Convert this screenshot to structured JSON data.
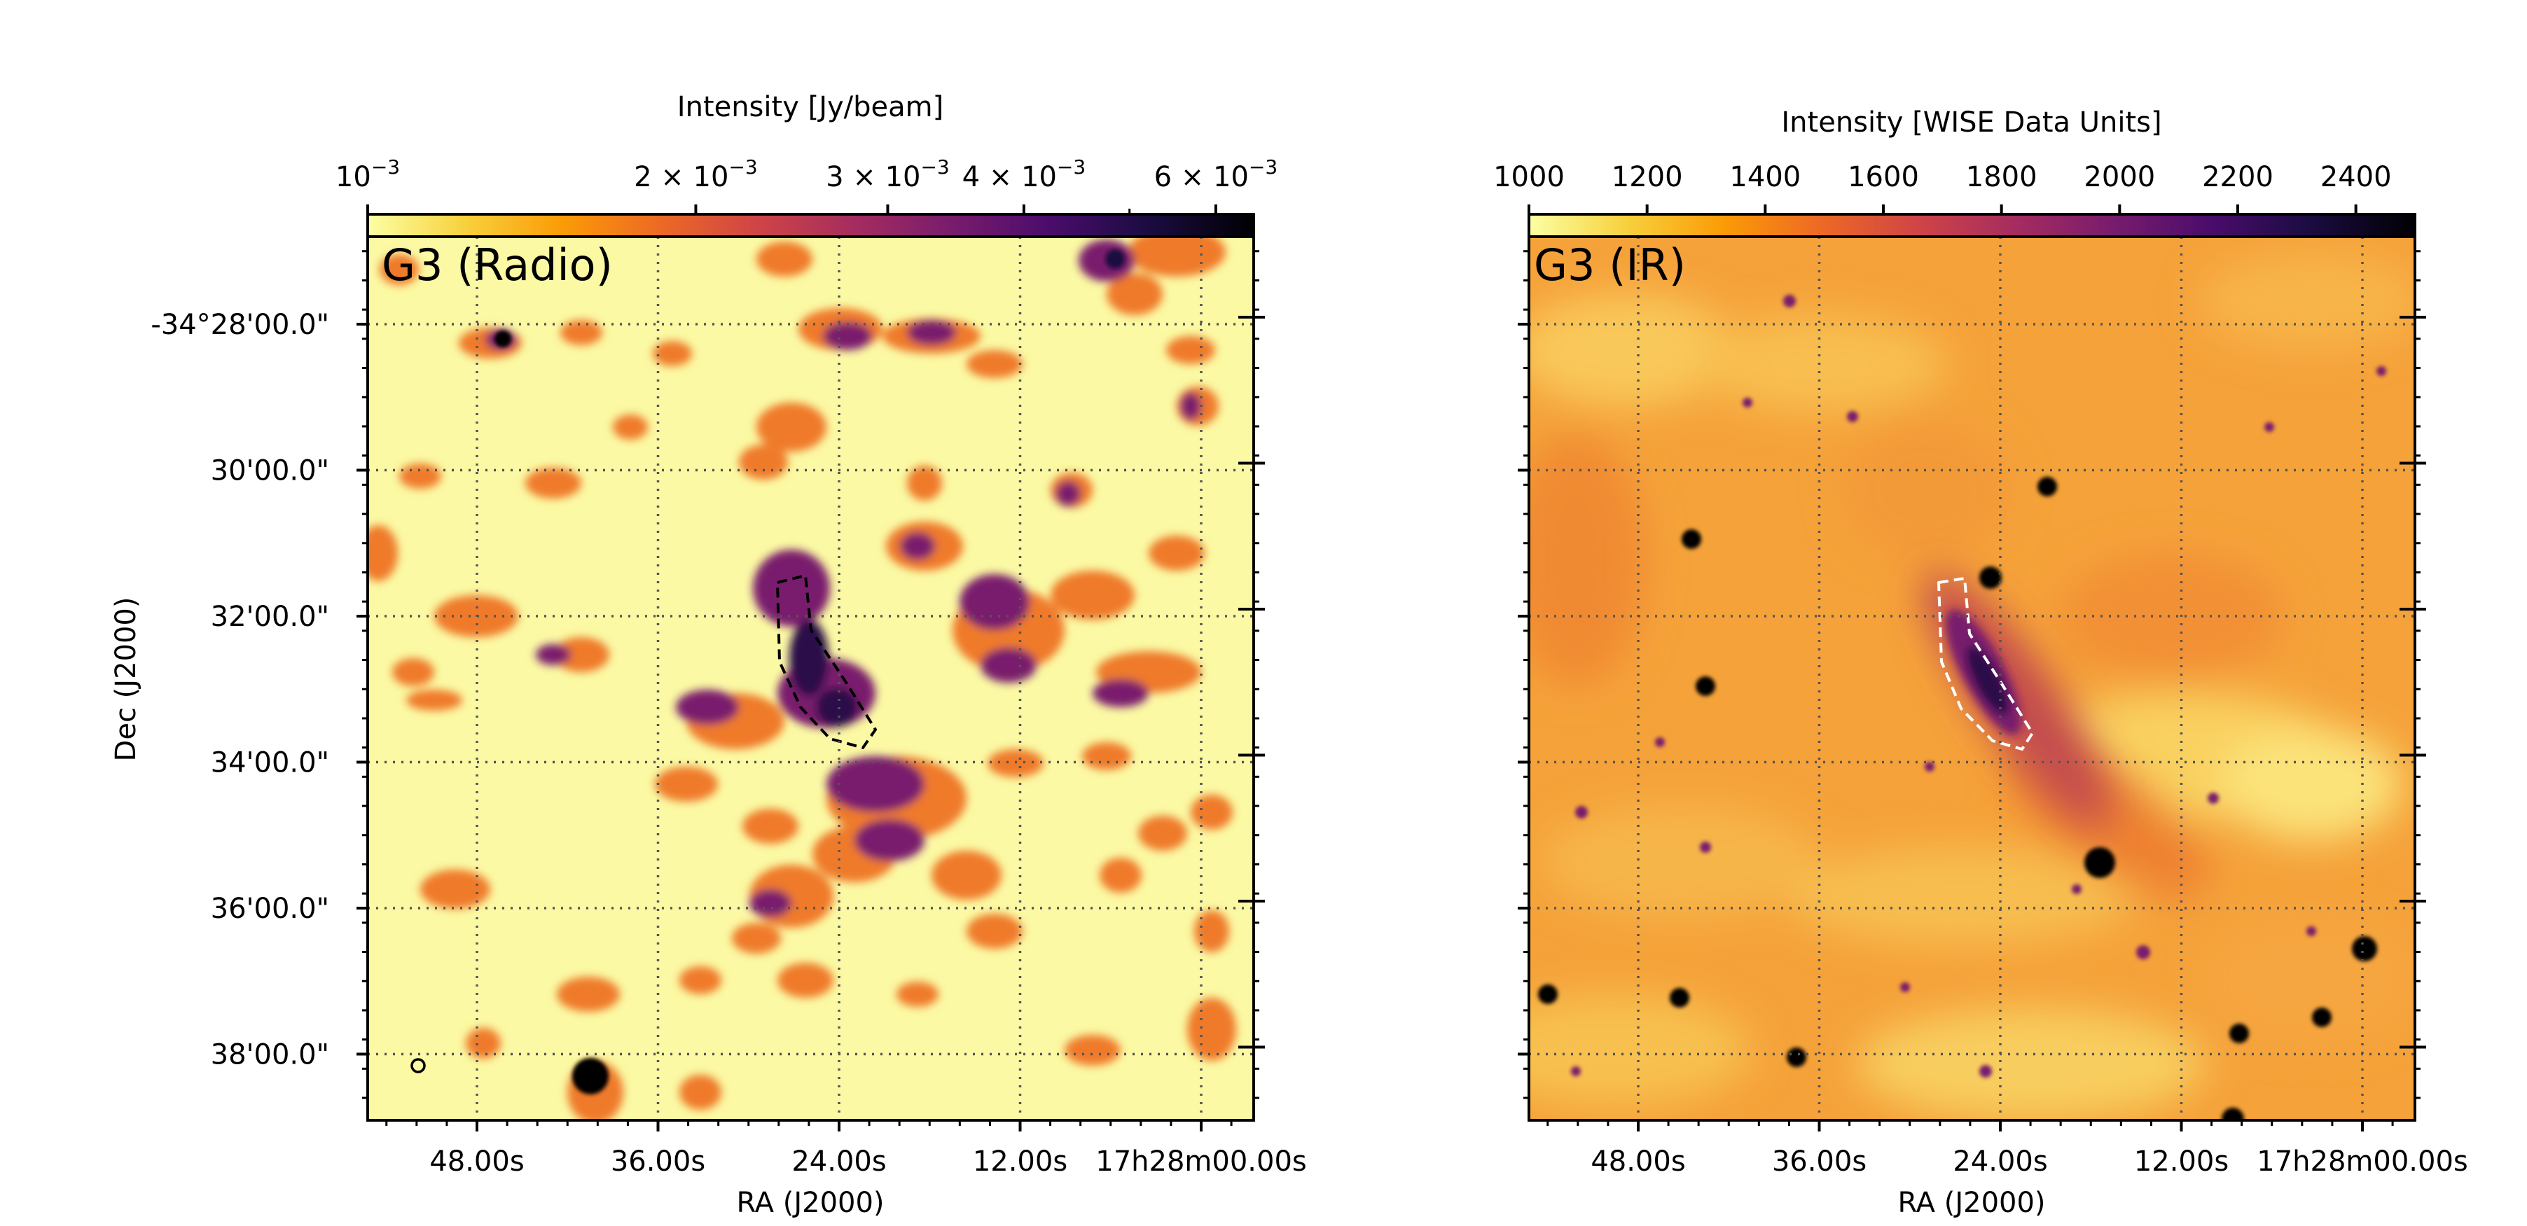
{
  "chart_data": [
    {
      "type": "heatmap",
      "panel_label": "G3 (Radio)",
      "colorbar": {
        "label": "Intensity [Jy/beam]",
        "scale": "log",
        "range": [
          0.001,
          0.0065
        ],
        "major_ticks": [
          {
            "value": 0.001,
            "base": "10",
            "exp": "−3"
          },
          {
            "value": 0.002,
            "base": "2 × 10",
            "exp": "−3"
          },
          {
            "value": 0.003,
            "base": "3 × 10",
            "exp": "−3"
          },
          {
            "value": 0.004,
            "base": "4 × 10",
            "exp": "−3"
          },
          {
            "value": 0.006,
            "base": "6 × 10",
            "exp": "−3"
          }
        ],
        "minor_ticks": [
          0.005
        ],
        "colormap": [
          "#fcffa4",
          "#f7d13d",
          "#fb9b06",
          "#ed6925",
          "#cf4446",
          "#a52c60",
          "#781c6d",
          "#4a0c6b",
          "#1b0c41",
          "#000004"
        ]
      },
      "xlabel": "RA (J2000)",
      "ylabel": "Dec (J2000)",
      "xlim_sec": [
        56.5,
        57.5
      ],
      "ylim_arcmin": [
        27.0,
        38.75
      ],
      "x_ticks": [
        {
          "value": 48,
          "label": "48.00s"
        },
        {
          "value": 36,
          "label": "36.00s"
        },
        {
          "value": 24,
          "label": "24.00s"
        },
        {
          "value": 12,
          "label": "12.00s"
        },
        {
          "value": 0,
          "label": "17h28m00.00s"
        }
      ],
      "y_ticks": [
        {
          "value": 28,
          "label": "-34°28'00.0\""
        },
        {
          "value": 30,
          "label": "30'00.0\""
        },
        {
          "value": 32,
          "label": "32'00.0\""
        },
        {
          "value": 34,
          "label": "34'00.0\""
        },
        {
          "value": 36,
          "label": "36'00.0\""
        },
        {
          "value": 38,
          "label": "38'00.0\""
        }
      ],
      "grid": true,
      "region_outline": "dashed black",
      "beam_marker": true
    },
    {
      "type": "heatmap",
      "panel_label": "G3 (IR)",
      "colorbar": {
        "label": "Intensity [WISE Data Units]",
        "scale": "linear",
        "range": [
          1000,
          2500
        ],
        "major_ticks": [
          {
            "value": 1000,
            "label": "1000"
          },
          {
            "value": 1200,
            "label": "1200"
          },
          {
            "value": 1400,
            "label": "1400"
          },
          {
            "value": 1600,
            "label": "1600"
          },
          {
            "value": 1800,
            "label": "1800"
          },
          {
            "value": 2000,
            "label": "2000"
          },
          {
            "value": 2200,
            "label": "2200"
          },
          {
            "value": 2400,
            "label": "2400"
          }
        ],
        "colormap": [
          "#fcffa4",
          "#f7d13d",
          "#fb9b06",
          "#ed6925",
          "#cf4446",
          "#a52c60",
          "#781c6d",
          "#4a0c6b",
          "#1b0c41",
          "#000004"
        ]
      },
      "xlabel": "RA (J2000)",
      "ylabel": "",
      "x_ticks": [
        {
          "value": 48,
          "label": "48.00s"
        },
        {
          "value": 36,
          "label": "36.00s"
        },
        {
          "value": 24,
          "label": "24.00s"
        },
        {
          "value": 12,
          "label": "12.00s"
        },
        {
          "value": 0,
          "label": "17h28m00.00s"
        }
      ],
      "y_ticks_unlabeled": [
        28,
        30,
        32,
        34,
        36,
        38
      ],
      "grid": true,
      "region_outline": "dashed white"
    }
  ]
}
